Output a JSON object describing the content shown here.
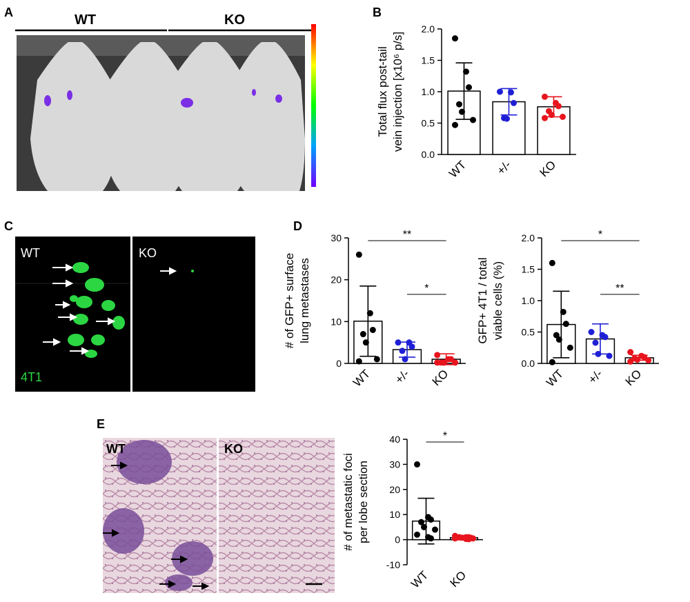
{
  "panels": {
    "A": {
      "letter": "A",
      "group1": "WT",
      "group2": "KO"
    },
    "B": {
      "letter": "B"
    },
    "C": {
      "letter": "C",
      "left_label": "WT",
      "right_label": "KO",
      "stain_label": "4T1"
    },
    "D": {
      "letter": "D"
    },
    "E": {
      "letter": "E",
      "left_label": "WT",
      "right_label": "KO"
    }
  },
  "colors": {
    "wt": "#000000",
    "het": "#1f1fd6",
    "ko": "#e8141e",
    "gfp": "#2bd642"
  },
  "chart_data": [
    {
      "id": "B",
      "type": "bar",
      "ylabel_lines": [
        "Total flux post-tail",
        "vein injection [x10⁶ p/s]"
      ],
      "ylim": [
        0,
        2.0
      ],
      "yticks": [
        "0.0",
        "0.5",
        "1.0",
        "1.5",
        "2.0"
      ],
      "categories": [
        "WT",
        "+/-",
        "KO"
      ],
      "means": [
        1.01,
        0.84,
        0.76
      ],
      "errors": [
        0.45,
        0.21,
        0.16
      ],
      "points": [
        [
          1.85,
          1.32,
          1.07,
          0.8,
          0.68,
          0.55,
          0.47
        ],
        [
          1.0,
          0.99,
          0.82,
          0.58,
          0.57
        ],
        [
          0.92,
          0.82,
          0.77,
          0.69,
          0.63,
          0.6,
          0.58
        ]
      ],
      "significance": []
    },
    {
      "id": "D1",
      "type": "bar",
      "ylabel_lines": [
        "# of GFP+ surface",
        "lung metastases"
      ],
      "ylim": [
        0,
        30
      ],
      "yticks": [
        "0",
        "10",
        "20",
        "30"
      ],
      "categories": [
        "WT",
        "+/-",
        "KO"
      ],
      "means": [
        10.1,
        3.3,
        1.0
      ],
      "errors": [
        8.4,
        1.8,
        1.3
      ],
      "points": [
        [
          26,
          12,
          8,
          7,
          5,
          1,
          0.5
        ],
        [
          5,
          5,
          4,
          3,
          1
        ],
        [
          2,
          1,
          1,
          0.2,
          0.2,
          0.2,
          0.2
        ]
      ],
      "significance": [
        {
          "from": 0,
          "to": 2,
          "label": "**"
        },
        {
          "from": 1,
          "to": 2,
          "label": "*"
        }
      ]
    },
    {
      "id": "D2",
      "type": "bar",
      "ylabel_lines": [
        "GFP+ 4T1 / total",
        "viable cells (%)"
      ],
      "ylim": [
        0,
        2.0
      ],
      "yticks": [
        "0.0",
        "0.5",
        "1.0",
        "1.5",
        "2.0"
      ],
      "categories": [
        "WT",
        "+/-",
        "KO"
      ],
      "means": [
        0.62,
        0.39,
        0.09
      ],
      "errors": [
        0.53,
        0.24,
        0.04
      ],
      "points": [
        [
          1.6,
          0.82,
          0.63,
          0.45,
          0.38,
          0.25,
          0.02
        ],
        [
          0.5,
          0.45,
          0.42,
          0.33,
          0.15,
          0.12
        ],
        [
          0.18,
          0.12,
          0.1,
          0.08,
          0.06,
          0.05,
          0.03
        ]
      ],
      "significance": [
        {
          "from": 0,
          "to": 2,
          "label": "*"
        },
        {
          "from": 1,
          "to": 2,
          "label": "**"
        }
      ]
    },
    {
      "id": "E",
      "type": "bar",
      "ylabel_lines": [
        "# of metastatic foci",
        "per lobe section"
      ],
      "ylim": [
        -10,
        40
      ],
      "yticks": [
        "-10",
        "0",
        "10",
        "20",
        "30",
        "40"
      ],
      "categories": [
        "WT",
        "KO"
      ],
      "means": [
        7.4,
        0.8
      ],
      "errors": [
        9.1,
        0.9
      ],
      "points": [
        [
          30,
          9,
          8,
          7,
          5,
          4,
          2,
          1,
          0.5
        ],
        [
          1.5,
          1,
          1,
          1,
          0.8,
          0.5,
          0.5,
          0.3,
          0.2
        ]
      ],
      "significance": [
        {
          "from": 0,
          "to": 1,
          "label": "*"
        }
      ]
    }
  ]
}
